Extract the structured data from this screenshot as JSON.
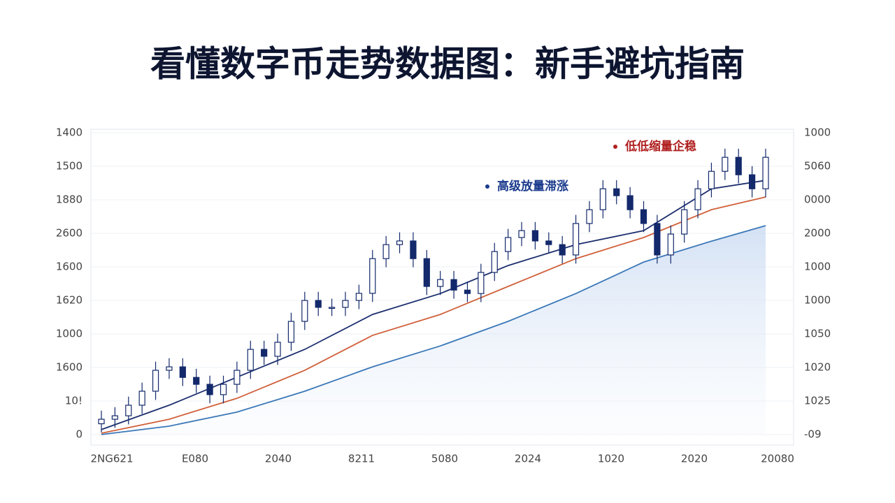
{
  "chart_data": {
    "type": "candlestick",
    "title": "看懂数字币走势数据图：新手避坑指南",
    "y_axis_labels": [
      "1400",
      "1500",
      "1880",
      "2600",
      "1600",
      "1620",
      "1000",
      "1600",
      "10!",
      "0"
    ],
    "y2_axis_labels": [
      "1000",
      "5060",
      "0000",
      "2000",
      "1000",
      "1000",
      "1050",
      "1020",
      "1025",
      "-09"
    ],
    "x_axis_labels": [
      "2NG621",
      "E080",
      "2040",
      "8211",
      "5080",
      "2024",
      "1020",
      "2020",
      "20080"
    ],
    "ylim": [
      0,
      1400
    ],
    "candle_color": "#13296b",
    "candles": {
      "open": [
        50,
        71,
        87,
        136,
        201,
        298,
        314,
        265,
        233,
        185,
        233,
        298,
        395,
        363,
        428,
        525,
        622,
        590,
        590,
        622,
        655,
        816,
        881,
        898,
        816,
        687,
        719,
        670,
        654,
        752,
        849,
        914,
        946,
        898,
        881,
        833,
        979,
        1043,
        1140,
        1108,
        1043,
        979,
        833,
        930,
        1043,
        1140,
        1221,
        1286,
        1205,
        1140
      ],
      "high": [
        111,
        127,
        176,
        241,
        338,
        354,
        354,
        305,
        273,
        273,
        338,
        435,
        435,
        468,
        565,
        662,
        662,
        630,
        662,
        695,
        856,
        921,
        938,
        938,
        856,
        759,
        759,
        710,
        792,
        889,
        954,
        986,
        986,
        938,
        921,
        1019,
        1083,
        1180,
        1180,
        1148,
        1083,
        1019,
        970,
        1083,
        1180,
        1261,
        1326,
        1326,
        1245,
        1326
      ],
      "low": [
        10,
        31,
        47,
        96,
        161,
        258,
        225,
        193,
        145,
        145,
        193,
        258,
        323,
        323,
        388,
        485,
        550,
        550,
        550,
        582,
        615,
        776,
        841,
        776,
        647,
        647,
        630,
        614,
        614,
        712,
        809,
        874,
        858,
        841,
        793,
        793,
        939,
        1003,
        1068,
        1003,
        939,
        793,
        793,
        890,
        1003,
        1100,
        1181,
        1165,
        1100,
        1100
      ],
      "close": [
        71,
        87,
        136,
        201,
        298,
        314,
        265,
        233,
        185,
        233,
        298,
        395,
        363,
        428,
        525,
        622,
        590,
        590,
        622,
        655,
        816,
        881,
        898,
        816,
        687,
        719,
        670,
        654,
        752,
        849,
        914,
        946,
        898,
        881,
        833,
        979,
        1043,
        1140,
        1108,
        1043,
        979,
        833,
        930,
        1043,
        1140,
        1221,
        1286,
        1205,
        1140,
        1286
      ]
    },
    "series": [
      {
        "color": "#3b78b8",
        "x": [
          0,
          5,
          10,
          15,
          20,
          25,
          30,
          35,
          40,
          45,
          49
        ],
        "values": [
          0,
          39,
          104,
          201,
          314,
          411,
          525,
          654,
          800,
          897,
          969
        ]
      },
      {
        "color": "#d0603a",
        "x": [
          0,
          5,
          10,
          15,
          20,
          25,
          30,
          35,
          40,
          45,
          49
        ],
        "values": [
          6,
          71,
          168,
          298,
          460,
          557,
          687,
          816,
          914,
          1043,
          1102
        ]
      },
      {
        "color": "#1c2e6e",
        "x": [
          0,
          5,
          10,
          15,
          20,
          25,
          30,
          35,
          40,
          45,
          49
        ],
        "values": [
          23,
          136,
          266,
          395,
          557,
          654,
          784,
          881,
          946,
          1140,
          1179
        ]
      }
    ],
    "annotations": [
      {
        "text": "高级放量滞涨",
        "color": "#1a3a8c"
      },
      {
        "text": "低低缩量企稳",
        "color": "#b02020"
      }
    ]
  }
}
